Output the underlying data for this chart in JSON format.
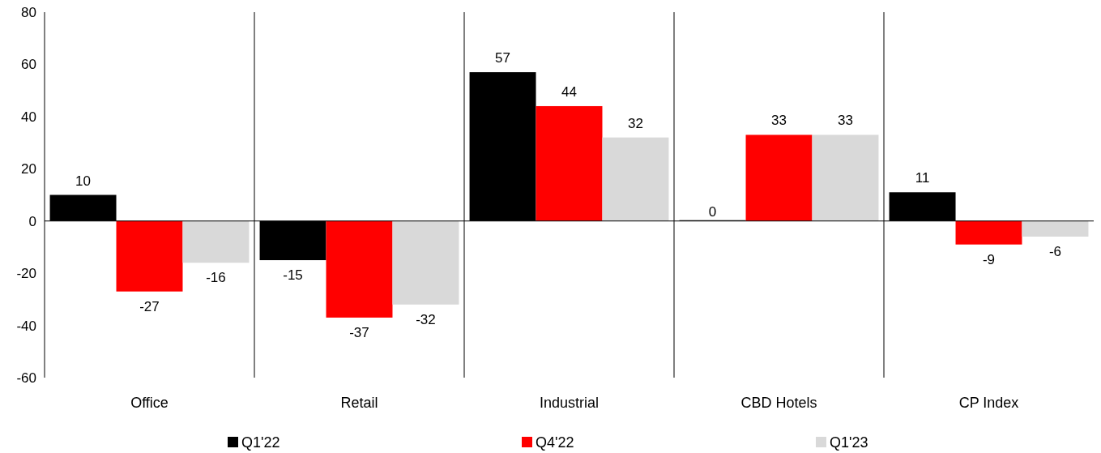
{
  "chart_data": {
    "type": "bar",
    "categories": [
      "Office",
      "Retail",
      "Industrial",
      "CBD Hotels",
      "CP Index"
    ],
    "series": [
      {
        "name": "Q1'22",
        "color": "#000000",
        "values": [
          10,
          -15,
          57,
          0,
          11
        ]
      },
      {
        "name": "Q4'22",
        "color": "#ff0000",
        "values": [
          -27,
          -37,
          44,
          33,
          -9
        ]
      },
      {
        "name": "Q1'23",
        "color": "#d9d9d9",
        "values": [
          -16,
          -32,
          32,
          33,
          -6
        ]
      }
    ],
    "ylim": [
      -60,
      80
    ],
    "yticks": [
      -60,
      -40,
      -20,
      0,
      20,
      40,
      60,
      80
    ],
    "grid": "x",
    "ref_lines": [
      {
        "axis": "y",
        "value": 0,
        "color": "#000000"
      }
    ],
    "legend": "bottom",
    "data_labels": true
  }
}
